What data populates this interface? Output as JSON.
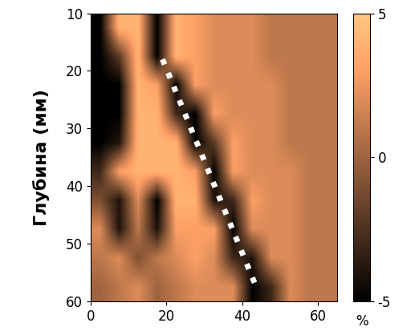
{
  "chart_data": {
    "type": "heatmap",
    "y_label": "Глубина (мм)",
    "xlim": [
      0,
      65
    ],
    "xticks": [
      0,
      20,
      40,
      60
    ],
    "ylim": [
      60,
      10
    ],
    "yticks": [
      10,
      20,
      30,
      40,
      50,
      60
    ],
    "color": "copper",
    "cells": [
      [
        -5,
        4,
        4,
        -5,
        4,
        3,
        2,
        2,
        2,
        1,
        1,
        1,
        1
      ],
      [
        -5,
        -2,
        4,
        -5,
        4,
        3,
        2,
        2,
        2,
        1,
        1,
        1,
        1
      ],
      [
        -5,
        -5,
        4,
        3,
        -5,
        3,
        2,
        2,
        2,
        2,
        1,
        1,
        1
      ],
      [
        -5,
        -5,
        4,
        4,
        -3,
        -5,
        3,
        2,
        2,
        2,
        1,
        1,
        1
      ],
      [
        -5,
        -4,
        4,
        4,
        4,
        -5,
        -2,
        3,
        2,
        2,
        1,
        1,
        1
      ],
      [
        -3,
        3,
        4,
        4,
        4,
        3,
        -5,
        3,
        2,
        2,
        2,
        1,
        1
      ],
      [
        -1,
        -4,
        2,
        -5,
        4,
        4,
        -4,
        -3,
        3,
        2,
        2,
        1,
        1
      ],
      [
        2,
        -4,
        1,
        -4,
        3,
        3,
        3,
        -5,
        2,
        2,
        2,
        1,
        1
      ],
      [
        1,
        2,
        -1,
        1,
        2,
        3,
        2,
        -3,
        -4,
        2,
        2,
        1,
        1
      ],
      [
        0,
        1,
        2,
        0,
        1,
        2,
        2,
        2,
        -5,
        -3,
        2,
        1,
        1
      ]
    ],
    "needle": {
      "x": [
        19,
        44
      ],
      "y": [
        18,
        58
      ],
      "color": "#ffffff",
      "line_style": "dotted"
    },
    "colorbar": {
      "range": [
        -5,
        5
      ],
      "ticks": [
        5,
        0,
        -5
      ],
      "label": "%"
    }
  }
}
